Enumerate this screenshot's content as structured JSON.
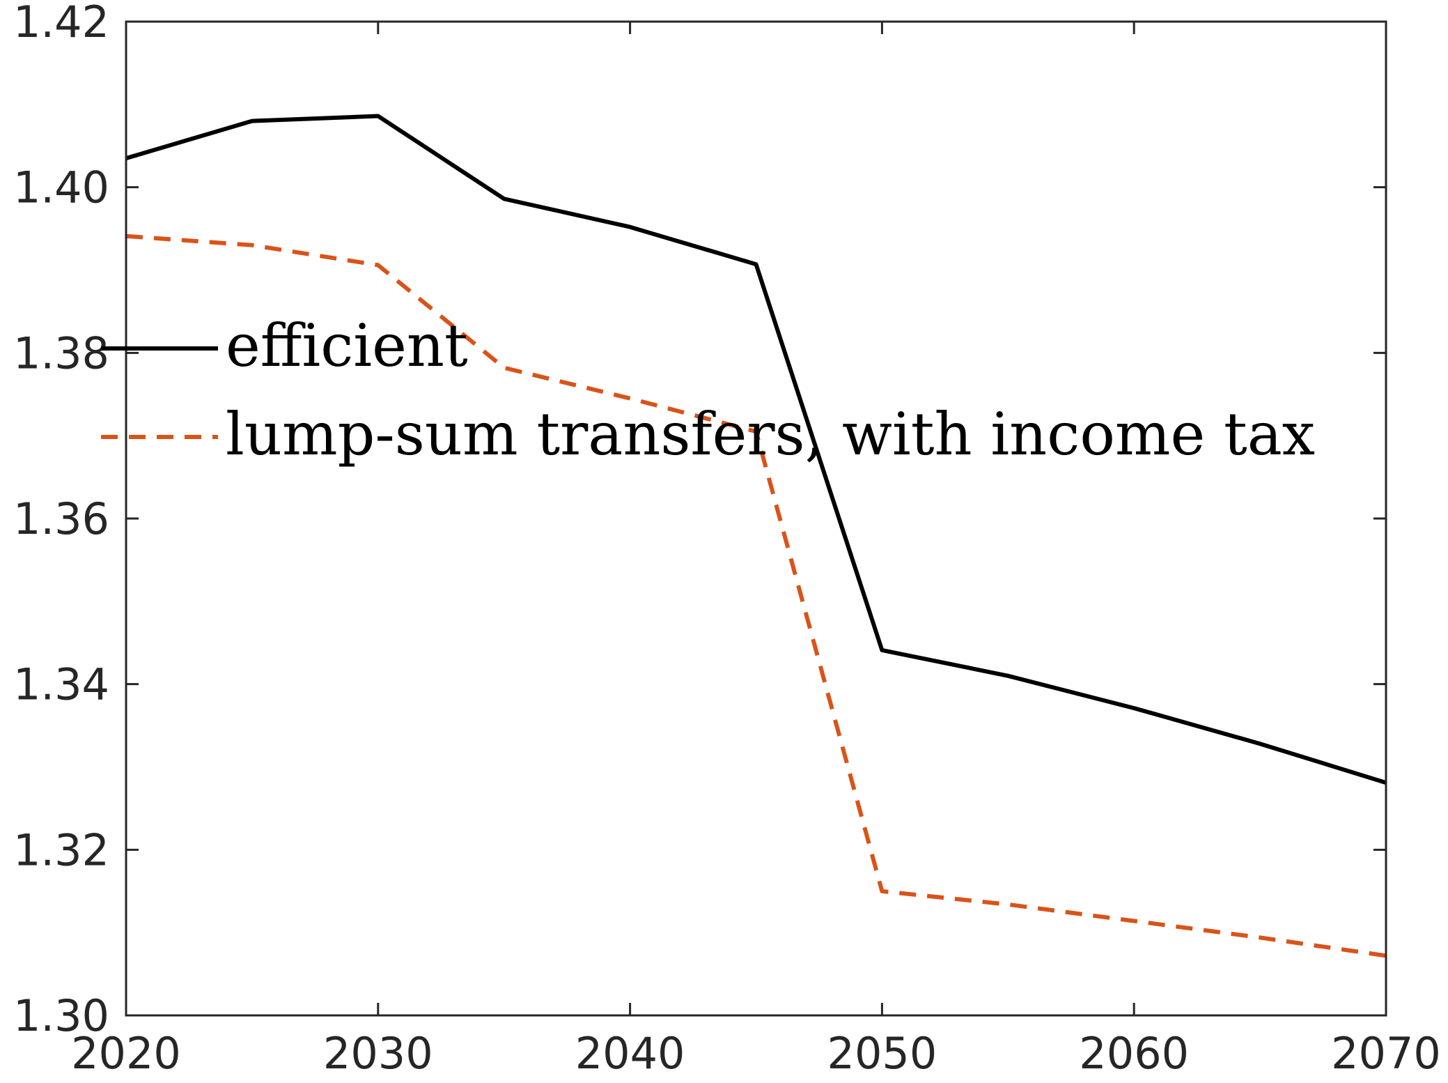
{
  "chart_data": {
    "type": "line",
    "title": "",
    "xlabel": "",
    "ylabel": "",
    "xlim": [
      2020,
      2070
    ],
    "ylim": [
      1.3,
      1.42
    ],
    "x_ticks": [
      "2020",
      "2030",
      "2040",
      "2050",
      "2060",
      "2070"
    ],
    "y_ticks": [
      "1.30",
      "1.32",
      "1.34",
      "1.36",
      "1.38",
      "1.40",
      "1.42"
    ],
    "grid": false,
    "legend_placement": "left-middle",
    "series": [
      {
        "name": "efficient",
        "color": "#000000",
        "style": "solid",
        "x": [
          2020,
          2025,
          2030,
          2035,
          2040,
          2045,
          2050,
          2055,
          2060,
          2065,
          2070
        ],
        "y": [
          1.4035,
          1.408,
          1.4086,
          1.3986,
          1.3952,
          1.3907,
          1.3441,
          1.341,
          1.3371,
          1.3328,
          1.3281
        ]
      },
      {
        "name": "lump-sum transfers, with income tax",
        "color": "#D95319",
        "style": "dashed",
        "x": [
          2020,
          2025,
          2030,
          2035,
          2040,
          2045,
          2050,
          2055,
          2060,
          2065,
          2070
        ],
        "y": [
          1.3941,
          1.393,
          1.3906,
          1.3782,
          1.3745,
          1.3705,
          1.315,
          1.3134,
          1.3114,
          1.3094,
          1.3072
        ]
      }
    ]
  }
}
